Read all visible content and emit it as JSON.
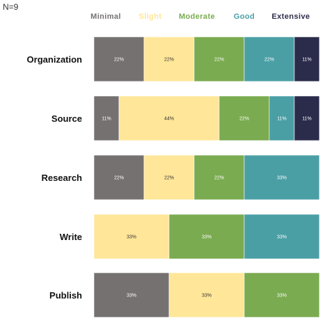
{
  "chart_data": {
    "type": "bar",
    "orientation": "horizontal",
    "stacked": true,
    "normalized": true,
    "sample_size_label": "N=9",
    "categories": [
      "Organization",
      "Source",
      "Research",
      "Write",
      "Publish"
    ],
    "series": [
      {
        "name": "Minimal",
        "color": "#767171",
        "values": [
          22,
          11,
          22,
          0,
          33
        ],
        "labels": [
          "22%",
          "11%",
          "22%",
          "",
          "33%"
        ],
        "label_color": "#ffffff"
      },
      {
        "name": "Slight",
        "color": "#ffe699",
        "values": [
          22,
          44,
          22,
          33,
          33
        ],
        "labels": [
          "22%",
          "44%",
          "22%",
          "33%",
          "33%"
        ],
        "label_color": "#333333"
      },
      {
        "name": "Moderate",
        "color": "#7aab50",
        "values": [
          22,
          22,
          22,
          33,
          33
        ],
        "labels": [
          "22%",
          "22%",
          "22%",
          "33%",
          "33%"
        ],
        "label_color": "#ffffff"
      },
      {
        "name": "Good",
        "color": "#4a9fa5",
        "values": [
          22,
          11,
          33,
          33,
          0
        ],
        "labels": [
          "22%",
          "11%",
          "33%",
          "33%",
          ""
        ],
        "label_color": "#ffffff"
      },
      {
        "name": "Extensive",
        "color": "#2b2c4b",
        "values": [
          11,
          11,
          0,
          0,
          0
        ],
        "labels": [
          "11%",
          "11%",
          "",
          "",
          ""
        ],
        "label_color": "#ffffff"
      }
    ],
    "legend_position": "top",
    "grid": false,
    "xlim": [
      0,
      100
    ]
  }
}
